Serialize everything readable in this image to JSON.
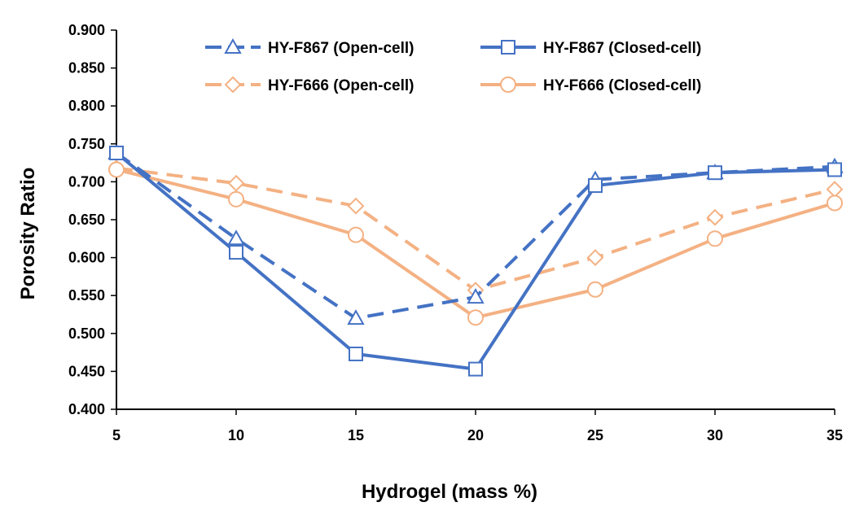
{
  "chart_data": {
    "type": "line",
    "title": "",
    "xlabel": "Hydrogel (mass %)",
    "ylabel": "Porosity Ratio",
    "x": [
      5,
      10,
      15,
      20,
      25,
      30,
      35
    ],
    "xlim": [
      5,
      35
    ],
    "ylim": [
      0.4,
      0.9
    ],
    "x_ticks": [
      "5",
      "10",
      "15",
      "20",
      "25",
      "30",
      "35"
    ],
    "y_ticks": [
      "0.400",
      "0.450",
      "0.500",
      "0.550",
      "0.600",
      "0.650",
      "0.700",
      "0.750",
      "0.800",
      "0.850",
      "0.900"
    ],
    "grid": false,
    "legend_position": "top",
    "series": [
      {
        "name": "HY-F867 (Open-cell)",
        "values": [
          0.738,
          0.625,
          0.52,
          0.548,
          0.703,
          0.712,
          0.72
        ],
        "color": "#4472C4",
        "dash": "dashed",
        "marker": "triangle"
      },
      {
        "name": "HY-F867 (Closed-cell)",
        "values": [
          0.738,
          0.607,
          0.473,
          0.453,
          0.695,
          0.712,
          0.716
        ],
        "color": "#4472C4",
        "dash": "solid",
        "marker": "square"
      },
      {
        "name": "HY-F666 (Open-cell)",
        "values": [
          0.718,
          0.698,
          0.668,
          0.557,
          0.6,
          0.653,
          0.69
        ],
        "color": "#F4B183",
        "dash": "dashed",
        "marker": "diamond"
      },
      {
        "name": "HY-F666 (Closed-cell)",
        "values": [
          0.716,
          0.677,
          0.63,
          0.521,
          0.558,
          0.625,
          0.672
        ],
        "color": "#F4B183",
        "dash": "solid",
        "marker": "circle"
      }
    ]
  }
}
